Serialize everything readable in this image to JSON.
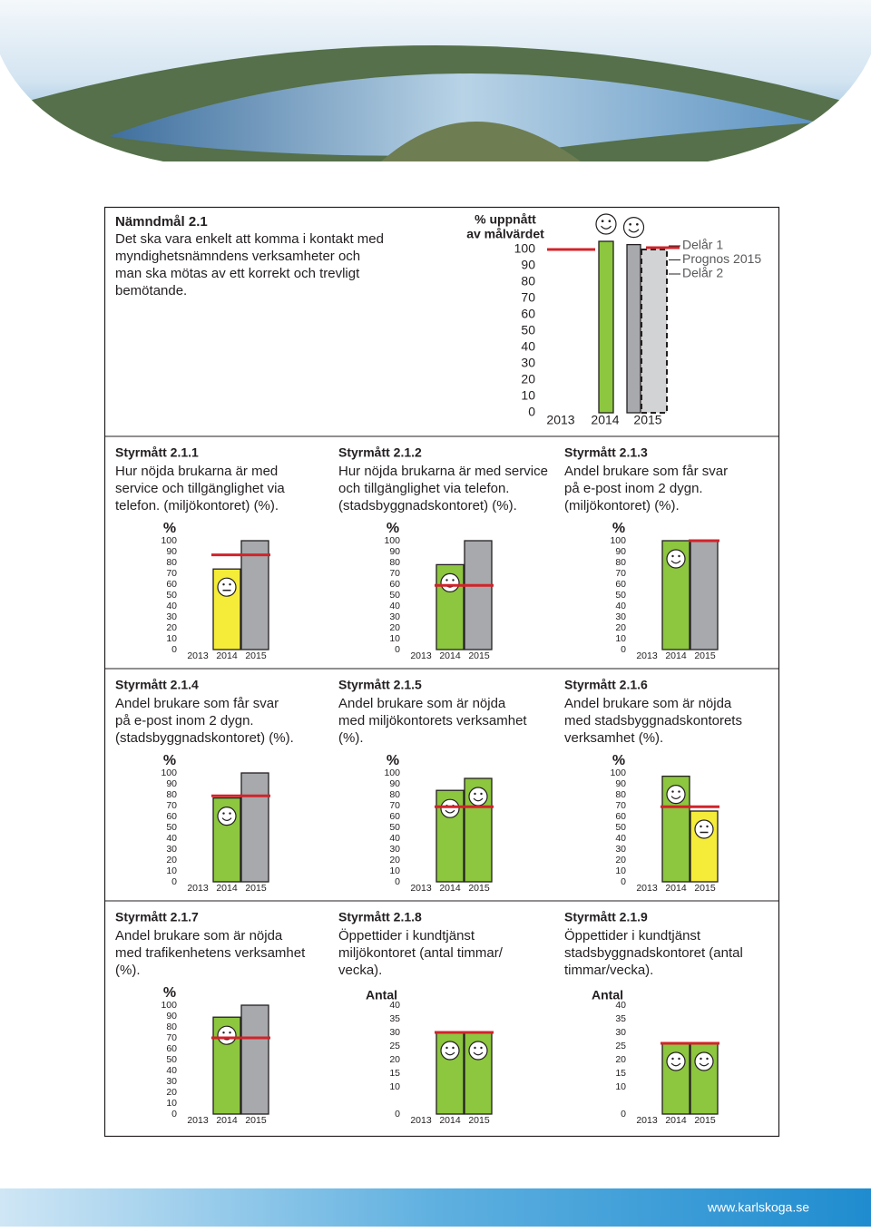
{
  "goal": {
    "title": "Nämndmål 2.1",
    "lines": [
      "Det ska vara enkelt att komma i kontakt med",
      "myndighetsnämndens verksamheter och",
      "man ska mötas av ett korrekt och trevligt",
      "bemötande."
    ]
  },
  "main_chart": {
    "title_lines": [
      "% uppnått",
      "av målvärdet"
    ],
    "categories": [
      "2013",
      "2014",
      "2015"
    ],
    "series": [
      {
        "name": "Delår 1",
        "color": "#8dc63f",
        "value": 105,
        "style": "solid",
        "face": "happy"
      },
      {
        "name": "Prognos 2015",
        "color": "#a7a9ac",
        "value": 103,
        "style": "solid",
        "face": "happy"
      },
      {
        "name": "Delår 2",
        "color": "#d1d3d4",
        "value": 100,
        "style": "dashed",
        "face": null
      }
    ],
    "target": 100,
    "target_color": "#d2232a",
    "ylim": [
      0,
      100
    ],
    "yticks": [
      0,
      10,
      20,
      30,
      40,
      50,
      60,
      70,
      80,
      90,
      100
    ]
  },
  "measures": [
    {
      "title": "Styrmått 2.1.1",
      "lines": [
        "Hur nöjda brukarna är med",
        "service och tillgänglighet via",
        "telefon. (miljökontoret) (%)."
      ],
      "unit": "%",
      "categories": [
        "2013",
        "2014",
        "2015"
      ],
      "values": [
        null,
        74,
        100
      ],
      "colors": [
        null,
        "#f5ec3a",
        "#a7a9ac"
      ],
      "targets": [
        null,
        87,
        87
      ],
      "faces": [
        null,
        "neutral",
        null
      ],
      "ylim": [
        0,
        100
      ],
      "yticks": [
        0,
        10,
        20,
        30,
        40,
        50,
        60,
        70,
        80,
        90,
        100
      ]
    },
    {
      "title": "Styrmått 2.1.2",
      "lines": [
        "Hur nöjda brukarna är med service",
        "och tillgänglighet via telefon.",
        "(stadsbyggnadskontoret) (%)."
      ],
      "unit": "%",
      "categories": [
        "2013",
        "2014",
        "2015"
      ],
      "values": [
        null,
        78,
        100
      ],
      "colors": [
        null,
        "#8dc63f",
        "#a7a9ac"
      ],
      "targets": [
        null,
        59,
        59
      ],
      "faces": [
        null,
        "happy",
        null
      ],
      "ylim": [
        0,
        100
      ],
      "yticks": [
        0,
        10,
        20,
        30,
        40,
        50,
        60,
        70,
        80,
        90,
        100
      ]
    },
    {
      "title": "Styrmått 2.1.3",
      "lines": [
        "Andel brukare som får svar",
        "på e-post inom 2 dygn.",
        "(miljökontoret) (%)."
      ],
      "unit": "%",
      "categories": [
        "2013",
        "2014",
        "2015"
      ],
      "values": [
        null,
        100,
        100
      ],
      "colors": [
        null,
        "#8dc63f",
        "#a7a9ac"
      ],
      "targets": [
        null,
        null,
        100
      ],
      "faces": [
        null,
        "happy",
        null
      ],
      "ylim": [
        0,
        100
      ],
      "yticks": [
        0,
        10,
        20,
        30,
        40,
        50,
        60,
        70,
        80,
        90,
        100
      ]
    },
    {
      "title": "Styrmått 2.1.4",
      "lines": [
        "Andel brukare som får svar",
        "på e-post inom 2 dygn.",
        "(stadsbyggnadskontoret) (%)."
      ],
      "unit": "%",
      "categories": [
        "2013",
        "2014",
        "2015"
      ],
      "values": [
        null,
        77,
        100
      ],
      "colors": [
        null,
        "#8dc63f",
        "#a7a9ac"
      ],
      "targets": [
        null,
        79,
        79
      ],
      "faces": [
        null,
        "happy",
        null
      ],
      "ylim": [
        0,
        100
      ],
      "yticks": [
        0,
        10,
        20,
        30,
        40,
        50,
        60,
        70,
        80,
        90,
        100
      ]
    },
    {
      "title": "Styrmått 2.1.5",
      "lines": [
        "Andel brukare som är nöjda",
        "med miljökontorets verksamhet",
        "(%)."
      ],
      "unit": "%",
      "categories": [
        "2013",
        "2014",
        "2015"
      ],
      "values": [
        null,
        84,
        95
      ],
      "colors": [
        null,
        "#8dc63f",
        "#8dc63f"
      ],
      "targets": [
        null,
        69,
        69
      ],
      "faces": [
        null,
        "happy",
        "happy"
      ],
      "ylim": [
        0,
        100
      ],
      "yticks": [
        0,
        10,
        20,
        30,
        40,
        50,
        60,
        70,
        80,
        90,
        100
      ]
    },
    {
      "title": "Styrmått 2.1.6",
      "lines": [
        "Andel brukare som är nöjda",
        "med stadsbyggnadskontorets",
        "verksamhet (%)."
      ],
      "unit": "%",
      "categories": [
        "2013",
        "2014",
        "2015"
      ],
      "values": [
        null,
        97,
        65
      ],
      "colors": [
        null,
        "#8dc63f",
        "#f5ec3a"
      ],
      "targets": [
        null,
        69,
        69
      ],
      "faces": [
        null,
        "happy",
        "neutral"
      ],
      "ylim": [
        0,
        100
      ],
      "yticks": [
        0,
        10,
        20,
        30,
        40,
        50,
        60,
        70,
        80,
        90,
        100
      ]
    },
    {
      "title": "Styrmått 2.1.7",
      "lines": [
        "Andel brukare som är nöjda",
        "med trafikenhetens verksamhet",
        "(%)."
      ],
      "unit": "%",
      "categories": [
        "2013",
        "2014",
        "2015"
      ],
      "values": [
        null,
        89,
        100
      ],
      "colors": [
        null,
        "#8dc63f",
        "#a7a9ac"
      ],
      "targets": [
        null,
        70,
        70
      ],
      "faces": [
        null,
        "happy",
        null
      ],
      "ylim": [
        0,
        100
      ],
      "yticks": [
        0,
        10,
        20,
        30,
        40,
        50,
        60,
        70,
        80,
        90,
        100
      ]
    },
    {
      "title": "Styrmått 2.1.8",
      "lines": [
        "Öppettider i kundtjänst",
        "miljökontoret (antal timmar/",
        "vecka)."
      ],
      "unit": "Antal",
      "categories": [
        "2013",
        "2014",
        "2015"
      ],
      "values": [
        null,
        30,
        30
      ],
      "colors": [
        null,
        "#8dc63f",
        "#8dc63f"
      ],
      "targets": [
        null,
        30,
        30
      ],
      "faces": [
        null,
        "happy",
        "happy"
      ],
      "ylim": [
        0,
        40
      ],
      "yticks": [
        0,
        10,
        15,
        20,
        25,
        30,
        35,
        40
      ]
    },
    {
      "title": "Styrmått 2.1.9",
      "lines": [
        "Öppettider i kundtjänst",
        "stadsbyggnadskontoret (antal",
        "timmar/vecka)."
      ],
      "unit": "Antal",
      "categories": [
        "2013",
        "2014",
        "2015"
      ],
      "values": [
        null,
        26,
        26
      ],
      "colors": [
        null,
        "#8dc63f",
        "#8dc63f"
      ],
      "targets": [
        null,
        26,
        26
      ],
      "faces": [
        null,
        "happy",
        "happy"
      ],
      "ylim": [
        0,
        40
      ],
      "yticks": [
        0,
        10,
        15,
        20,
        25,
        30,
        35,
        40
      ]
    }
  ],
  "target_color": "#d2232a",
  "footer": {
    "url": "www.karlskoga.se"
  }
}
